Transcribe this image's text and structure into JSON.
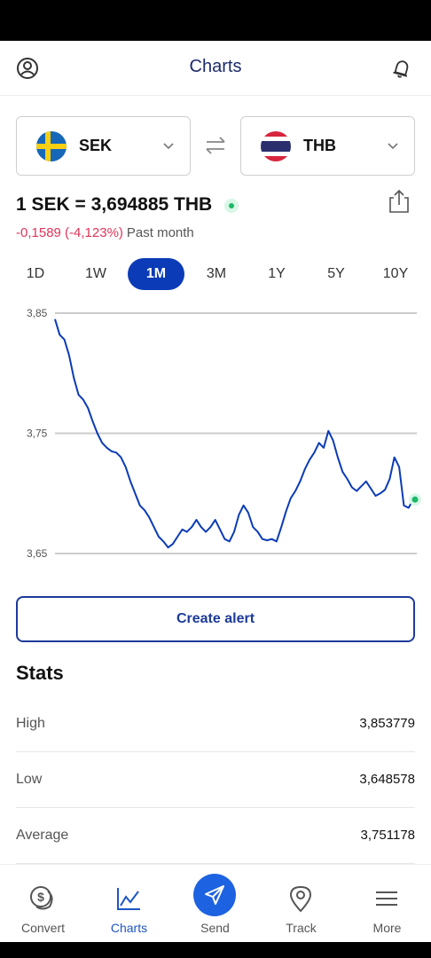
{
  "header": {
    "title": "Charts",
    "left_icon": "profile-icon",
    "right_icon": "bell-icon"
  },
  "from_currency": {
    "code": "SEK",
    "flag": "sweden-flag-icon"
  },
  "to_currency": {
    "code": "THB",
    "flag": "thailand-flag-icon"
  },
  "rate": {
    "text": "1 SEK = 3,694885 THB",
    "change": "-0,1589 (-4,123%)",
    "period": "Past month"
  },
  "periods": [
    "1D",
    "1W",
    "1M",
    "3M",
    "1Y",
    "5Y",
    "10Y"
  ],
  "active_period": "1M",
  "chart_data": {
    "type": "line",
    "ylim": [
      3.65,
      3.85
    ],
    "y_ticks": [
      "3,85",
      "3,75",
      "3,65"
    ],
    "y_tick_values": [
      3.85,
      3.75,
      3.65
    ],
    "line_color": "#0b3bb6",
    "grid": true,
    "values": [
      3.845,
      3.832,
      3.828,
      3.815,
      3.796,
      3.782,
      3.778,
      3.771,
      3.76,
      3.75,
      3.742,
      3.738,
      3.735,
      3.734,
      3.73,
      3.722,
      3.71,
      3.7,
      3.69,
      3.686,
      3.68,
      3.672,
      3.664,
      3.66,
      3.655,
      3.658,
      3.664,
      3.67,
      3.668,
      3.672,
      3.678,
      3.672,
      3.668,
      3.672,
      3.678,
      3.67,
      3.662,
      3.66,
      3.668,
      3.682,
      3.69,
      3.684,
      3.672,
      3.668,
      3.662,
      3.661,
      3.662,
      3.66,
      3.672,
      3.685,
      3.696,
      3.702,
      3.71,
      3.72,
      3.728,
      3.734,
      3.742,
      3.738,
      3.752,
      3.744,
      3.73,
      3.718,
      3.712,
      3.705,
      3.702,
      3.706,
      3.71,
      3.704,
      3.698,
      3.7,
      3.703,
      3.712,
      3.73,
      3.722,
      3.69,
      3.688,
      3.694885
    ]
  },
  "alert_button": "Create alert",
  "stats": {
    "title": "Stats",
    "rows": [
      {
        "label": "High",
        "value": "3,853779"
      },
      {
        "label": "Low",
        "value": "3,648578"
      },
      {
        "label": "Average",
        "value": "3,751178"
      }
    ]
  },
  "nav": [
    {
      "label": "Convert",
      "icon": "coins-icon"
    },
    {
      "label": "Charts",
      "icon": "chart-icon"
    },
    {
      "label": "Send",
      "icon": "paper-plane-icon"
    },
    {
      "label": "Track",
      "icon": "location-pin-icon"
    },
    {
      "label": "More",
      "icon": "menu-icon"
    }
  ],
  "active_nav": "Charts"
}
